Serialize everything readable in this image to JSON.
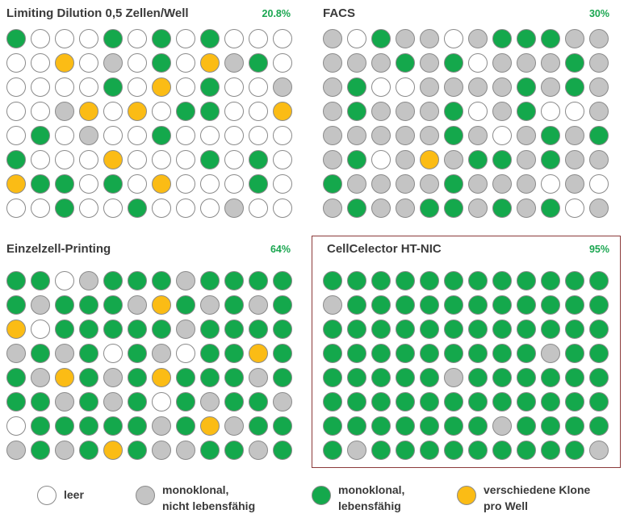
{
  "colors": {
    "empty": "#ffffff",
    "gray": "#c4c4c4",
    "green": "#14a84c",
    "yellow": "#fbbc15",
    "percent_text": "#1aa650",
    "highlight_border": "#8b3a3a"
  },
  "panels": [
    {
      "title": "Limiting Dilution 0,5 Zellen/Well",
      "percent": "20.8%",
      "rows": [
        "GWWWGWGWGWWW",
        "WWYWGWGWYGGW",
        "WWWWGWYWGWWG",
        "WWGYWYWGGWWY",
        "WGWGWWGWWWWW",
        "GWWWYWWWGWGW",
        "YGGWGWYWWWGW",
        "WWGWWGWWWGWW"
      ]
    },
    {
      "title": "FACS",
      "percent": "30%",
      "rows": [
        "GWGGGWGGGGGG",
        "GGGGGGWGGGGG",
        "GGWWGGGGWGGG",
        "GGGGGWGGGWWG",
        "GGGGGGWGGGGG",
        "GGWGYGGGGGGG",
        "GGGGGGGGWGGW",
        "GGGGGGGGGGWG"
      ]
    },
    {
      "title": "Einzelzell-Printing",
      "percent": "64%",
      "rows": [
        "GGWGGGGGGGGG",
        "GGGGGGYGGGGG",
        "YWGGGGGGGGGG",
        "GGGGWGGWGGYG",
        "GGYGGGYGGGGG",
        "GGGGGGWGGGGG",
        "WGGGGGGGYWGG",
        "GGGGYGGGGGGG"
      ]
    },
    {
      "title": "CellCelector HT-NIC",
      "percent": "95%",
      "rows": [
        "GGGGGGGGGGGG",
        "GGGGGGGGGGGG",
        "GGGGGGGGGGGG",
        "GGGGGGGGGGGG",
        "GGGGGGGGGGGG",
        "GGGGGGGGGGGG",
        "GGGGGGGGGGGG",
        "GGGGGGGGGGGG"
      ]
    }
  ],
  "legend": [
    {
      "key": "empty",
      "label": "leer"
    },
    {
      "key": "gray",
      "label": "monoklonal,\nnicht lebensfähig"
    },
    {
      "key": "green",
      "label": "monoklonal,\nlebensfähig"
    },
    {
      "key": "yellow",
      "label": "verschiedene Klone\npro Well"
    }
  ]
}
